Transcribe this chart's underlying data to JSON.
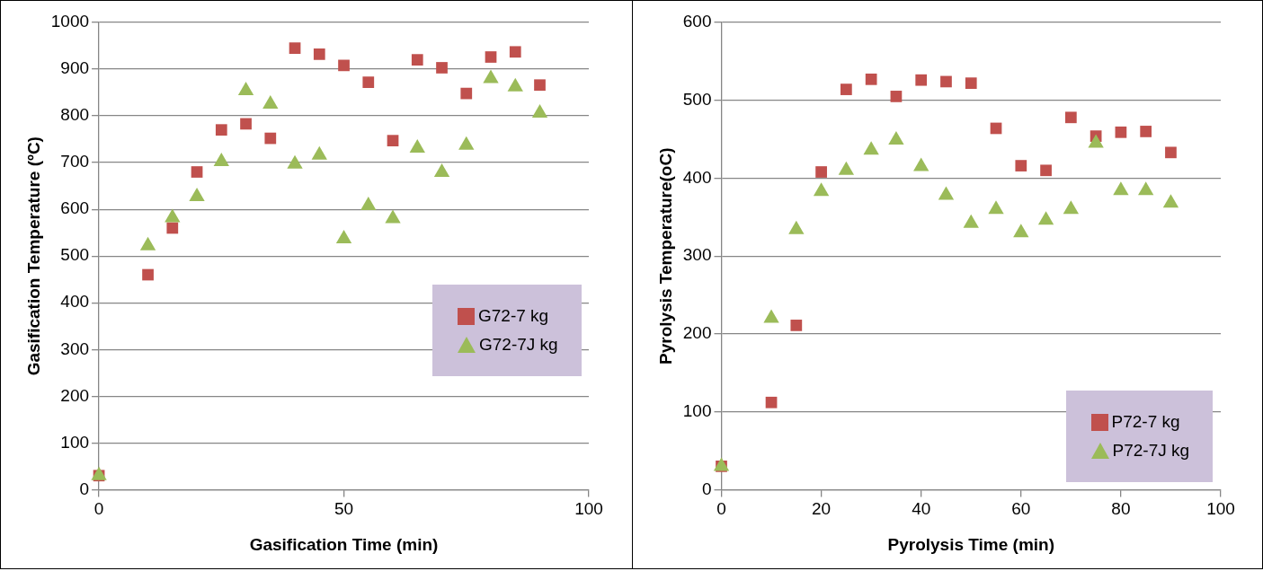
{
  "chart_data": [
    {
      "type": "scatter",
      "xlabel": "Gasification Time (min)",
      "ylabel": "Gasification Temperature (ºC)",
      "x": [
        0,
        10,
        15,
        20,
        25,
        30,
        35,
        40,
        45,
        50,
        55,
        60,
        65,
        70,
        75,
        80,
        85,
        90
      ],
      "series": [
        {
          "name": "G72-7 kg",
          "color": "#c0504d",
          "marker": "square",
          "values": [
            30,
            460,
            560,
            680,
            770,
            783,
            752,
            945,
            932,
            908,
            872,
            747,
            920,
            903,
            848,
            926,
            937,
            866
          ]
        },
        {
          "name": "G72-7J kg",
          "color": "#9bbb59",
          "marker": "triangle",
          "values": [
            30,
            522,
            582,
            627,
            702,
            854,
            825,
            697,
            716,
            537,
            608,
            580,
            731,
            679,
            737,
            880,
            862,
            806
          ]
        }
      ],
      "xlim": [
        0,
        100
      ],
      "xticks": [
        0,
        50,
        100
      ],
      "ylim": [
        0,
        1000
      ],
      "yticks": [
        0,
        100,
        200,
        300,
        400,
        500,
        600,
        700,
        800,
        900,
        1000
      ],
      "grid": "y",
      "legend": "right"
    },
    {
      "type": "scatter",
      "xlabel": "Pyrolysis Time (min)",
      "ylabel": "Pyrolysis Temperature(oC)",
      "x": [
        0,
        10,
        15,
        20,
        25,
        30,
        35,
        40,
        45,
        50,
        55,
        60,
        65,
        70,
        75,
        80,
        85,
        90
      ],
      "series": [
        {
          "name": "P72-7 kg",
          "color": "#c0504d",
          "marker": "square",
          "values": [
            30,
            112,
            211,
            408,
            514,
            527,
            505,
            526,
            524,
            522,
            464,
            416,
            410,
            478,
            454,
            459,
            460,
            433
          ]
        },
        {
          "name": "P72-7J kg",
          "color": "#9bbb59",
          "marker": "triangle",
          "values": [
            30,
            220,
            334,
            383,
            410,
            436,
            449,
            415,
            378,
            342,
            360,
            330,
            346,
            360,
            445,
            384,
            384,
            368
          ]
        }
      ],
      "xlim": [
        0,
        100
      ],
      "xticks": [
        0,
        20,
        40,
        60,
        80,
        100
      ],
      "ylim": [
        0,
        600
      ],
      "yticks": [
        0,
        100,
        200,
        300,
        400,
        500,
        600
      ],
      "grid": "y",
      "legend": "bottom right"
    }
  ]
}
